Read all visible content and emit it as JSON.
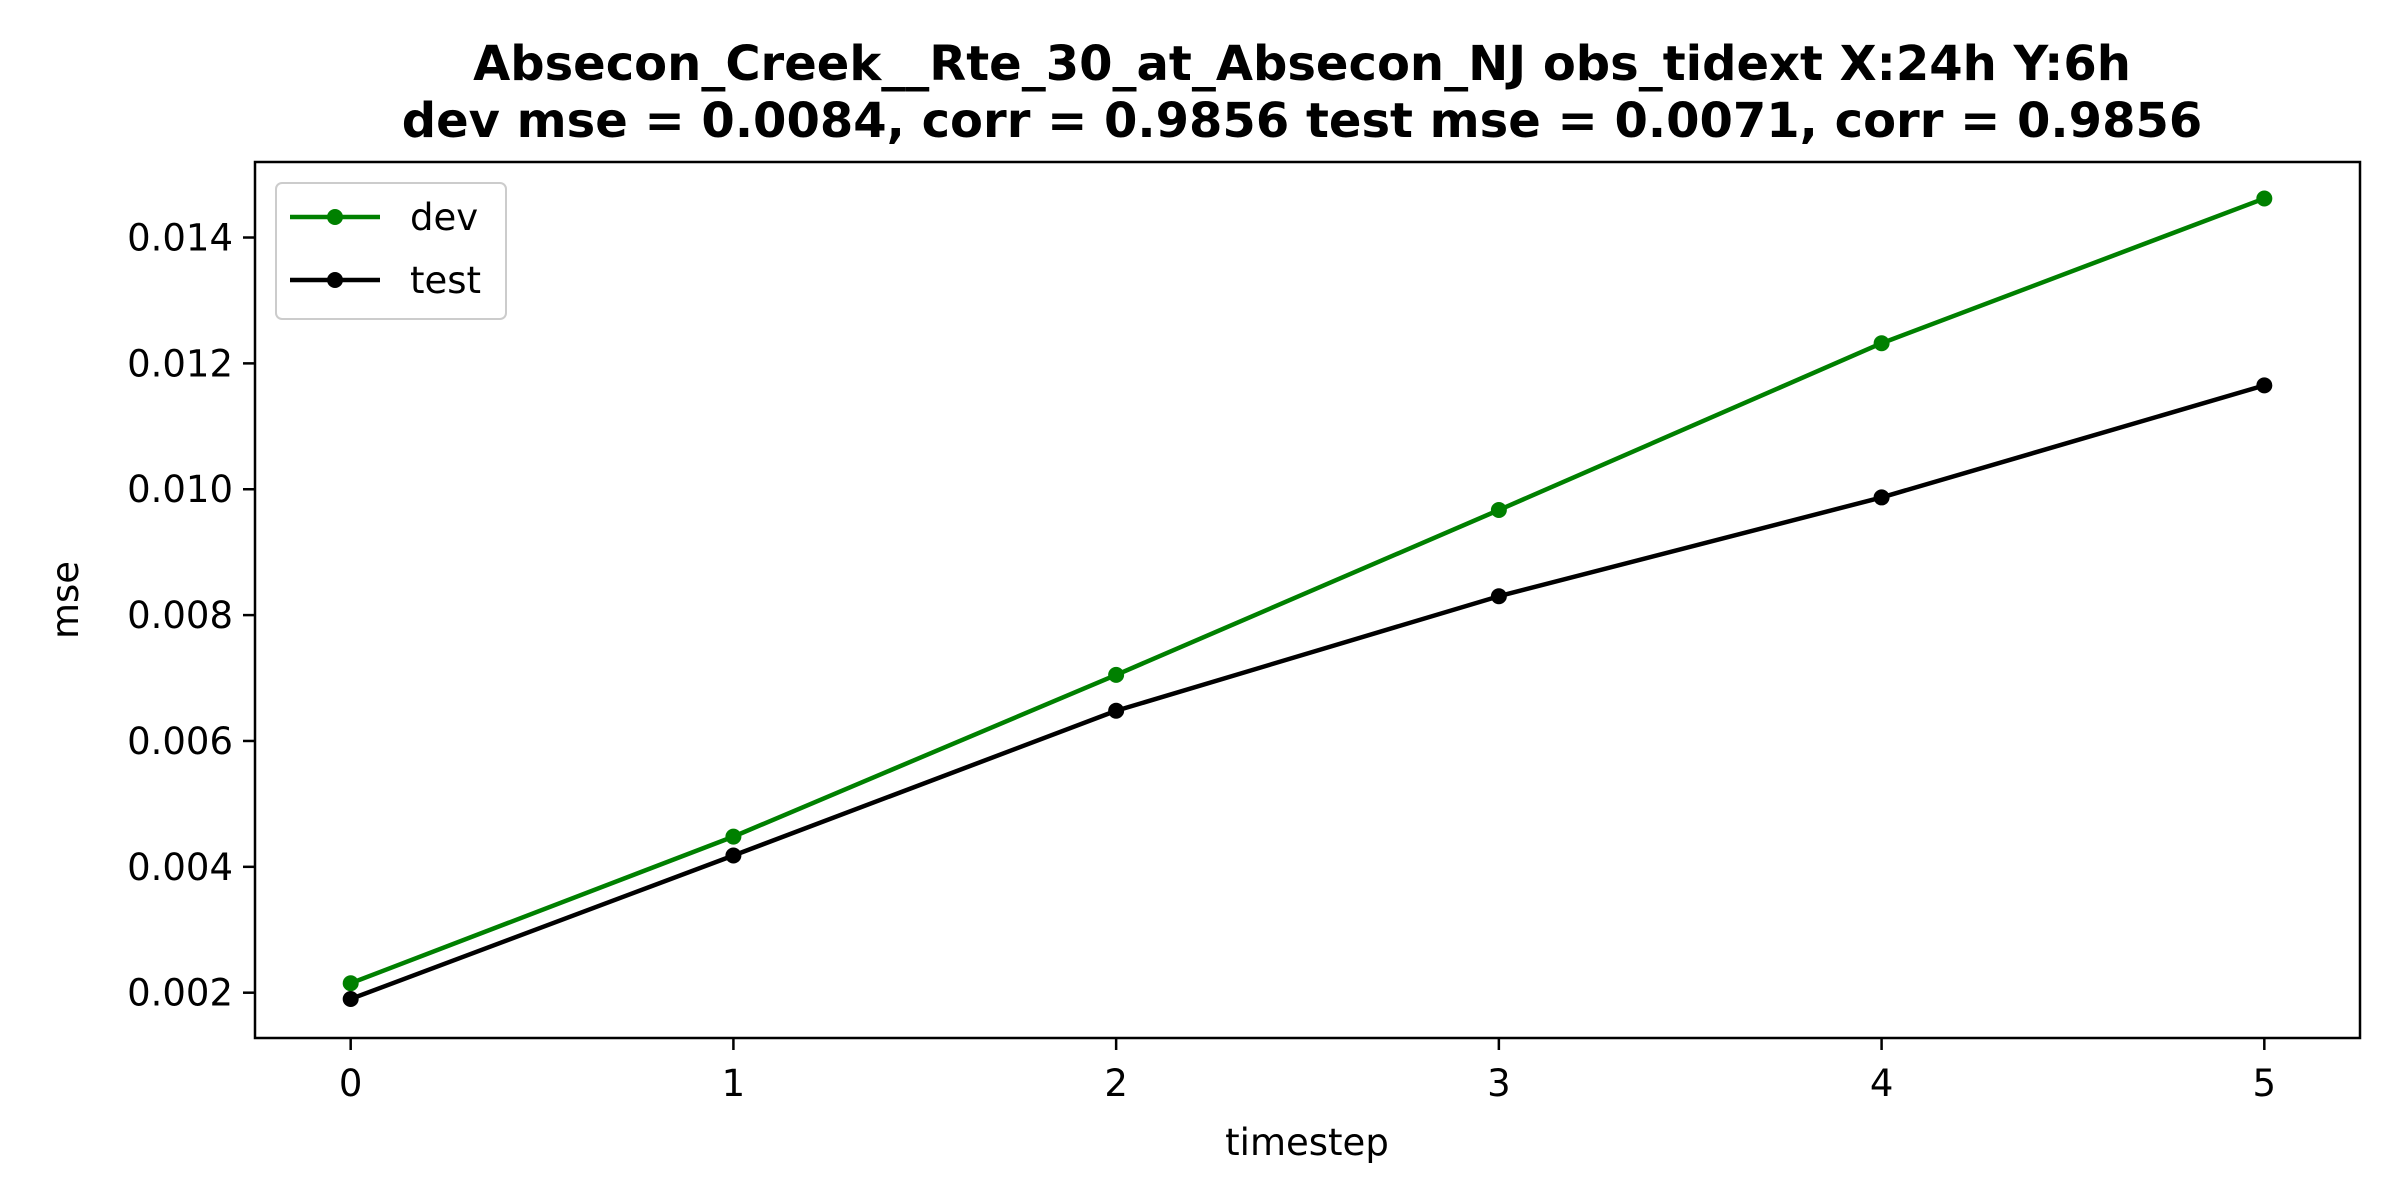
{
  "chart_data": {
    "type": "line",
    "title_line1": "Absecon_Creek__Rte_30_at_Absecon_NJ   obs_tidext   X:24h   Y:6h",
    "title_line2": "dev mse = 0.0084, corr = 0.9856   test mse = 0.0071, corr = 0.9856",
    "xlabel": "timestep",
    "ylabel": "mse",
    "x": [
      0,
      1,
      2,
      3,
      4,
      5
    ],
    "xlim": [
      -0.25,
      5.25
    ],
    "ylim": [
      0.00128,
      0.0152
    ],
    "xticks": [
      "0",
      "1",
      "2",
      "3",
      "4",
      "5"
    ],
    "yticks": [
      "0.002",
      "0.004",
      "0.006",
      "0.008",
      "0.010",
      "0.012",
      "0.014"
    ],
    "series": [
      {
        "name": "dev",
        "color": "#008000",
        "values": [
          0.00215,
          0.00448,
          0.00705,
          0.00967,
          0.01232,
          0.01462
        ]
      },
      {
        "name": "test",
        "color": "#000000",
        "values": [
          0.0019,
          0.00418,
          0.00648,
          0.0083,
          0.00987,
          0.01165
        ]
      }
    ],
    "grid": false,
    "legend_position": "upper-left"
  }
}
